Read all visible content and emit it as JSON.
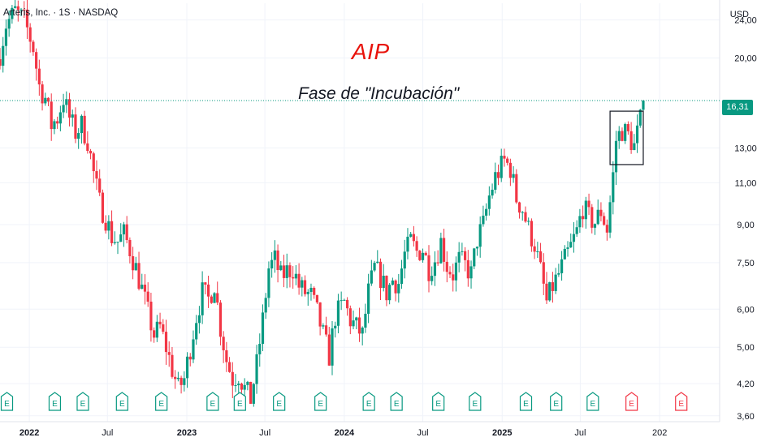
{
  "header": {
    "symbol_title": "Arteris, Inc. · 1S · NASDAQ",
    "currency": "USD"
  },
  "annotations": {
    "ticker": "AIP",
    "phase": "Fase de \"Incubación\""
  },
  "colors": {
    "up": "#089981",
    "down": "#f23645",
    "ticker": "#e8140c",
    "grid": "#f0f3fa"
  },
  "earnings_markers": [
    {
      "date": "2021-11-10",
      "label": "E",
      "status": "past"
    },
    {
      "date": "2022-03-01",
      "label": "E",
      "status": "past"
    },
    {
      "date": "2022-05-05",
      "label": "E",
      "status": "past"
    },
    {
      "date": "2022-08-04",
      "label": "E",
      "status": "past"
    },
    {
      "date": "2022-11-03",
      "label": "E",
      "status": "past"
    },
    {
      "date": "2023-03-02",
      "label": "E",
      "status": "past"
    },
    {
      "date": "2023-05-04",
      "label": "E",
      "status": "past"
    },
    {
      "date": "2023-08-03",
      "label": "E",
      "status": "past"
    },
    {
      "date": "2023-11-07",
      "label": "E",
      "status": "past"
    },
    {
      "date": "2024-02-27",
      "label": "E",
      "status": "past"
    },
    {
      "date": "2024-05-01",
      "label": "E",
      "status": "past"
    },
    {
      "date": "2024-08-06",
      "label": "E",
      "status": "past"
    },
    {
      "date": "2024-10-30",
      "label": "E",
      "status": "past"
    },
    {
      "date": "2025-02-25",
      "label": "E",
      "status": "past"
    },
    {
      "date": "2025-05-06",
      "label": "E",
      "status": "past"
    },
    {
      "date": "2025-07-30",
      "label": "E",
      "status": "past"
    },
    {
      "date": "2025-10-28",
      "label": "E",
      "status": "upcoming"
    },
    {
      "date": "2026-02-20",
      "label": "E",
      "status": "upcoming"
    }
  ],
  "chart_data": {
    "type": "candlestick",
    "interval": "1 week",
    "y_scale": "log",
    "ylim": [
      3.5,
      26.0
    ],
    "xlim": [
      "2021-10-25",
      "2026-05-20"
    ],
    "y_ticks": [
      {
        "value": 24.0,
        "label": "24,00"
      },
      {
        "value": 20.0,
        "label": "20,00"
      },
      {
        "value": 16.31,
        "label": "16,31"
      },
      {
        "value": 13.0,
        "label": "13,00"
      },
      {
        "value": 11.0,
        "label": "11,00"
      },
      {
        "value": 9.0,
        "label": "9,00"
      },
      {
        "value": 7.5,
        "label": "7,50"
      },
      {
        "value": 6.0,
        "label": "6,00"
      },
      {
        "value": 5.0,
        "label": "5,00"
      },
      {
        "value": 4.2,
        "label": "4,20"
      },
      {
        "value": 3.6,
        "label": "3,60"
      }
    ],
    "x_ticks": [
      {
        "date": "2022-01-01",
        "label": "2022",
        "bold": true
      },
      {
        "date": "2022-07-01",
        "label": "Jul",
        "bold": false
      },
      {
        "date": "2023-01-01",
        "label": "2023",
        "bold": true
      },
      {
        "date": "2023-07-01",
        "label": "Jul",
        "bold": false
      },
      {
        "date": "2024-01-01",
        "label": "2024",
        "bold": true
      },
      {
        "date": "2024-07-01",
        "label": "Jul",
        "bold": false
      },
      {
        "date": "2025-01-01",
        "label": "2025",
        "bold": true
      },
      {
        "date": "2025-07-01",
        "label": "Jul",
        "bold": false
      },
      {
        "date": "2026-01-01",
        "label": "202",
        "bold": false
      }
    ],
    "last_price": {
      "value": 16.31,
      "label": "16,31"
    },
    "box": {
      "date_start": "2025-09-08",
      "date_end": "2025-11-24",
      "low": 12.0,
      "high": 15.5
    },
    "start_date": "2021-10-25",
    "close_path": [
      [
        "2021-10-25",
        20.5
      ],
      [
        "2021-11-08",
        23.5
      ],
      [
        "2021-11-29",
        25.0
      ],
      [
        "2021-12-20",
        24.0
      ],
      [
        "2022-01-10",
        21.0
      ],
      [
        "2022-01-24",
        17.5
      ],
      [
        "2022-02-07",
        16.5
      ],
      [
        "2022-02-21",
        14.5
      ],
      [
        "2022-03-07",
        15.0
      ],
      [
        "2022-03-21",
        16.5
      ],
      [
        "2022-04-04",
        15.0
      ],
      [
        "2022-04-18",
        14.0
      ],
      [
        "2022-05-02",
        14.5
      ],
      [
        "2022-05-16",
        13.5
      ],
      [
        "2022-05-30",
        11.5
      ],
      [
        "2022-06-13",
        10.0
      ],
      [
        "2022-06-27",
        9.3
      ],
      [
        "2022-07-11",
        8.5
      ],
      [
        "2022-07-25",
        8.3
      ],
      [
        "2022-08-08",
        8.6
      ],
      [
        "2022-08-22",
        8.0
      ],
      [
        "2022-09-05",
        7.3
      ],
      [
        "2022-09-19",
        6.6
      ],
      [
        "2022-10-03",
        5.9
      ],
      [
        "2022-10-17",
        5.3
      ],
      [
        "2022-10-31",
        5.5
      ],
      [
        "2022-11-14",
        5.0
      ],
      [
        "2022-11-28",
        4.5
      ],
      [
        "2022-12-12",
        4.1
      ],
      [
        "2022-12-26",
        4.3
      ],
      [
        "2023-01-09",
        5.0
      ],
      [
        "2023-01-23",
        5.8
      ],
      [
        "2023-02-06",
        6.5
      ],
      [
        "2023-02-20",
        6.3
      ],
      [
        "2023-03-06",
        6.8
      ],
      [
        "2023-03-20",
        5.5
      ],
      [
        "2023-04-03",
        4.7
      ],
      [
        "2023-04-17",
        4.3
      ],
      [
        "2023-05-01",
        4.4
      ],
      [
        "2023-05-15",
        4.1
      ],
      [
        "2023-05-29",
        3.9
      ],
      [
        "2023-06-12",
        4.6
      ],
      [
        "2023-06-26",
        5.7
      ],
      [
        "2023-07-10",
        7.3
      ],
      [
        "2023-07-24",
        7.6
      ],
      [
        "2023-08-07",
        7.0
      ],
      [
        "2023-08-21",
        7.2
      ],
      [
        "2023-09-04",
        7.3
      ],
      [
        "2023-09-18",
        6.7
      ],
      [
        "2023-10-02",
        6.5
      ],
      [
        "2023-10-16",
        6.4
      ],
      [
        "2023-10-30",
        5.9
      ],
      [
        "2023-11-13",
        5.3
      ],
      [
        "2023-11-27",
        4.8
      ],
      [
        "2023-12-11",
        5.8
      ],
      [
        "2024-01-01",
        6.2
      ],
      [
        "2024-01-15",
        5.7
      ],
      [
        "2024-01-29",
        5.5
      ],
      [
        "2024-02-12",
        5.3
      ],
      [
        "2024-02-26",
        6.5
      ],
      [
        "2024-03-11",
        7.3
      ],
      [
        "2024-03-25",
        7.0
      ],
      [
        "2024-04-08",
        6.5
      ],
      [
        "2024-04-22",
        6.9
      ],
      [
        "2024-05-06",
        6.8
      ],
      [
        "2024-05-20",
        7.8
      ],
      [
        "2024-06-03",
        8.3
      ],
      [
        "2024-06-17",
        7.9
      ],
      [
        "2024-07-01",
        8.0
      ],
      [
        "2024-07-15",
        7.3
      ],
      [
        "2024-07-29",
        7.6
      ],
      [
        "2024-08-12",
        8.3
      ],
      [
        "2024-08-26",
        7.4
      ],
      [
        "2024-09-09",
        7.1
      ],
      [
        "2024-09-23",
        7.6
      ],
      [
        "2024-10-07",
        7.4
      ],
      [
        "2024-10-21",
        7.1
      ],
      [
        "2024-11-04",
        8.4
      ],
      [
        "2024-11-18",
        9.0
      ],
      [
        "2024-12-02",
        10.3
      ],
      [
        "2024-12-16",
        11.3
      ],
      [
        "2025-01-06",
        12.2
      ],
      [
        "2025-01-20",
        11.8
      ],
      [
        "2025-02-03",
        10.2
      ],
      [
        "2025-02-17",
        9.7
      ],
      [
        "2025-03-03",
        8.8
      ],
      [
        "2025-03-17",
        8.2
      ],
      [
        "2025-03-31",
        7.2
      ],
      [
        "2025-04-14",
        6.2
      ],
      [
        "2025-04-28",
        6.7
      ],
      [
        "2025-05-12",
        7.1
      ],
      [
        "2025-05-26",
        7.6
      ],
      [
        "2025-06-09",
        8.1
      ],
      [
        "2025-06-23",
        8.7
      ],
      [
        "2025-07-07",
        9.8
      ],
      [
        "2025-07-21",
        9.3
      ],
      [
        "2025-08-04",
        9.1
      ],
      [
        "2025-08-18",
        9.6
      ],
      [
        "2025-09-01",
        8.8
      ],
      [
        "2025-09-15",
        11.4
      ],
      [
        "2025-09-22",
        13.5
      ],
      [
        "2025-10-06",
        14.2
      ],
      [
        "2025-10-20",
        13.8
      ],
      [
        "2025-11-03",
        13.1
      ],
      [
        "2025-11-17",
        14.8
      ],
      [
        "2025-11-24",
        16.31
      ]
    ]
  }
}
